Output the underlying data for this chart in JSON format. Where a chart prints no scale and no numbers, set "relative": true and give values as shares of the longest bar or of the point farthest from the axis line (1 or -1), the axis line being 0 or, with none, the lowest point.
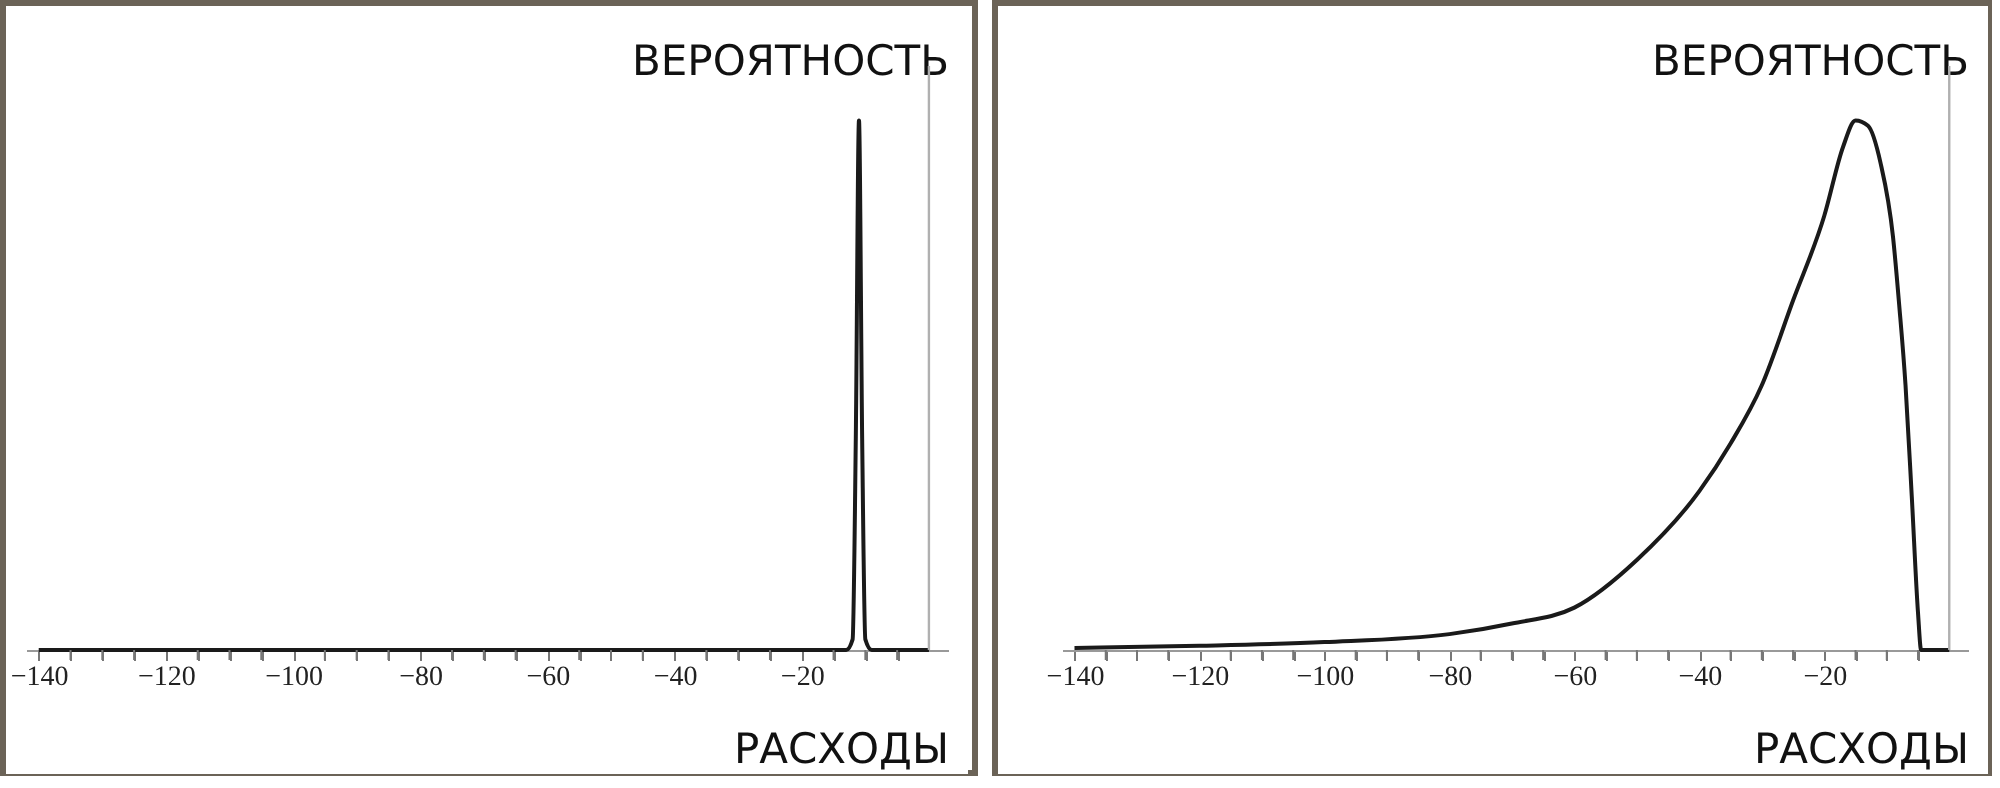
{
  "chart_data": [
    {
      "type": "line",
      "relative": true,
      "xlabel": "РАСХОДЫ",
      "ylabel": "ВЕРОЯТНОСТЬ",
      "color": "#1a1a1a",
      "xlim": [
        -142,
        3
      ],
      "x": [
        -140,
        -20,
        -13,
        -12,
        -11.5,
        -11,
        -10.5,
        -10,
        -9,
        0
      ],
      "values": [
        0,
        0,
        0,
        0.02,
        0.4,
        1,
        0.4,
        0.02,
        0,
        0
      ],
      "xticks": [
        -140,
        {
          "value": -135,
          "label": null
        },
        {
          "value": -130,
          "label": null
        },
        {
          "value": -125,
          "label": null
        },
        -120,
        {
          "value": -115,
          "label": null
        },
        {
          "value": -110,
          "label": null
        },
        {
          "value": -105,
          "label": null
        },
        -100,
        {
          "value": -95,
          "label": null
        },
        {
          "value": -90,
          "label": null
        },
        {
          "value": -85,
          "label": null
        },
        -80,
        {
          "value": -75,
          "label": null
        },
        {
          "value": -70,
          "label": null
        },
        {
          "value": -65,
          "label": null
        },
        -60,
        {
          "value": -55,
          "label": null
        },
        {
          "value": -50,
          "label": null
        },
        {
          "value": -45,
          "label": null
        },
        -40,
        {
          "value": -35,
          "label": null
        },
        {
          "value": -30,
          "label": null
        },
        {
          "value": -25,
          "label": null
        },
        -20,
        {
          "value": -15,
          "label": null
        },
        {
          "value": -10,
          "label": null
        },
        {
          "value": -5,
          "label": null
        }
      ],
      "ref_lines": [
        {
          "axis": "x",
          "value": 0,
          "color": "#b0b0b0"
        }
      ]
    },
    {
      "type": "line",
      "relative": true,
      "xlabel": "РАСХОДЫ",
      "ylabel": "ВЕРОЯТНОСТЬ",
      "color": "#1a1a1a",
      "xlim": [
        -142,
        3
      ],
      "x": [
        -140,
        -120,
        -100,
        -80,
        -70,
        -60,
        -50,
        -40,
        -35,
        -30,
        -25,
        -20,
        -17,
        -15,
        -13,
        -11,
        -9,
        -8,
        -7,
        -6,
        -5,
        -4.5,
        0
      ],
      "values": [
        0.004,
        0.008,
        0.015,
        0.03,
        0.05,
        0.08,
        0.17,
        0.3,
        0.39,
        0.5,
        0.66,
        0.82,
        0.95,
        1,
        0.99,
        0.92,
        0.78,
        0.65,
        0.5,
        0.29,
        0.07,
        0,
        0
      ],
      "xticks": [
        -140,
        {
          "value": -135,
          "label": null
        },
        {
          "value": -130,
          "label": null
        },
        {
          "value": -125,
          "label": null
        },
        -120,
        {
          "value": -115,
          "label": null
        },
        {
          "value": -110,
          "label": null
        },
        {
          "value": -105,
          "label": null
        },
        -100,
        {
          "value": -95,
          "label": null
        },
        {
          "value": -90,
          "label": null
        },
        {
          "value": -85,
          "label": null
        },
        -80,
        {
          "value": -75,
          "label": null
        },
        {
          "value": -70,
          "label": null
        },
        {
          "value": -65,
          "label": null
        },
        -60,
        {
          "value": -55,
          "label": null
        },
        {
          "value": -50,
          "label": null
        },
        {
          "value": -45,
          "label": null
        },
        -40,
        {
          "value": -35,
          "label": null
        },
        {
          "value": -30,
          "label": null
        },
        {
          "value": -25,
          "label": null
        },
        -20,
        {
          "value": -15,
          "label": null
        },
        {
          "value": -10,
          "label": null
        },
        {
          "value": -5,
          "label": null
        }
      ],
      "ref_lines": [
        {
          "axis": "x",
          "value": 0,
          "color": "#b0b0b0"
        }
      ]
    }
  ]
}
